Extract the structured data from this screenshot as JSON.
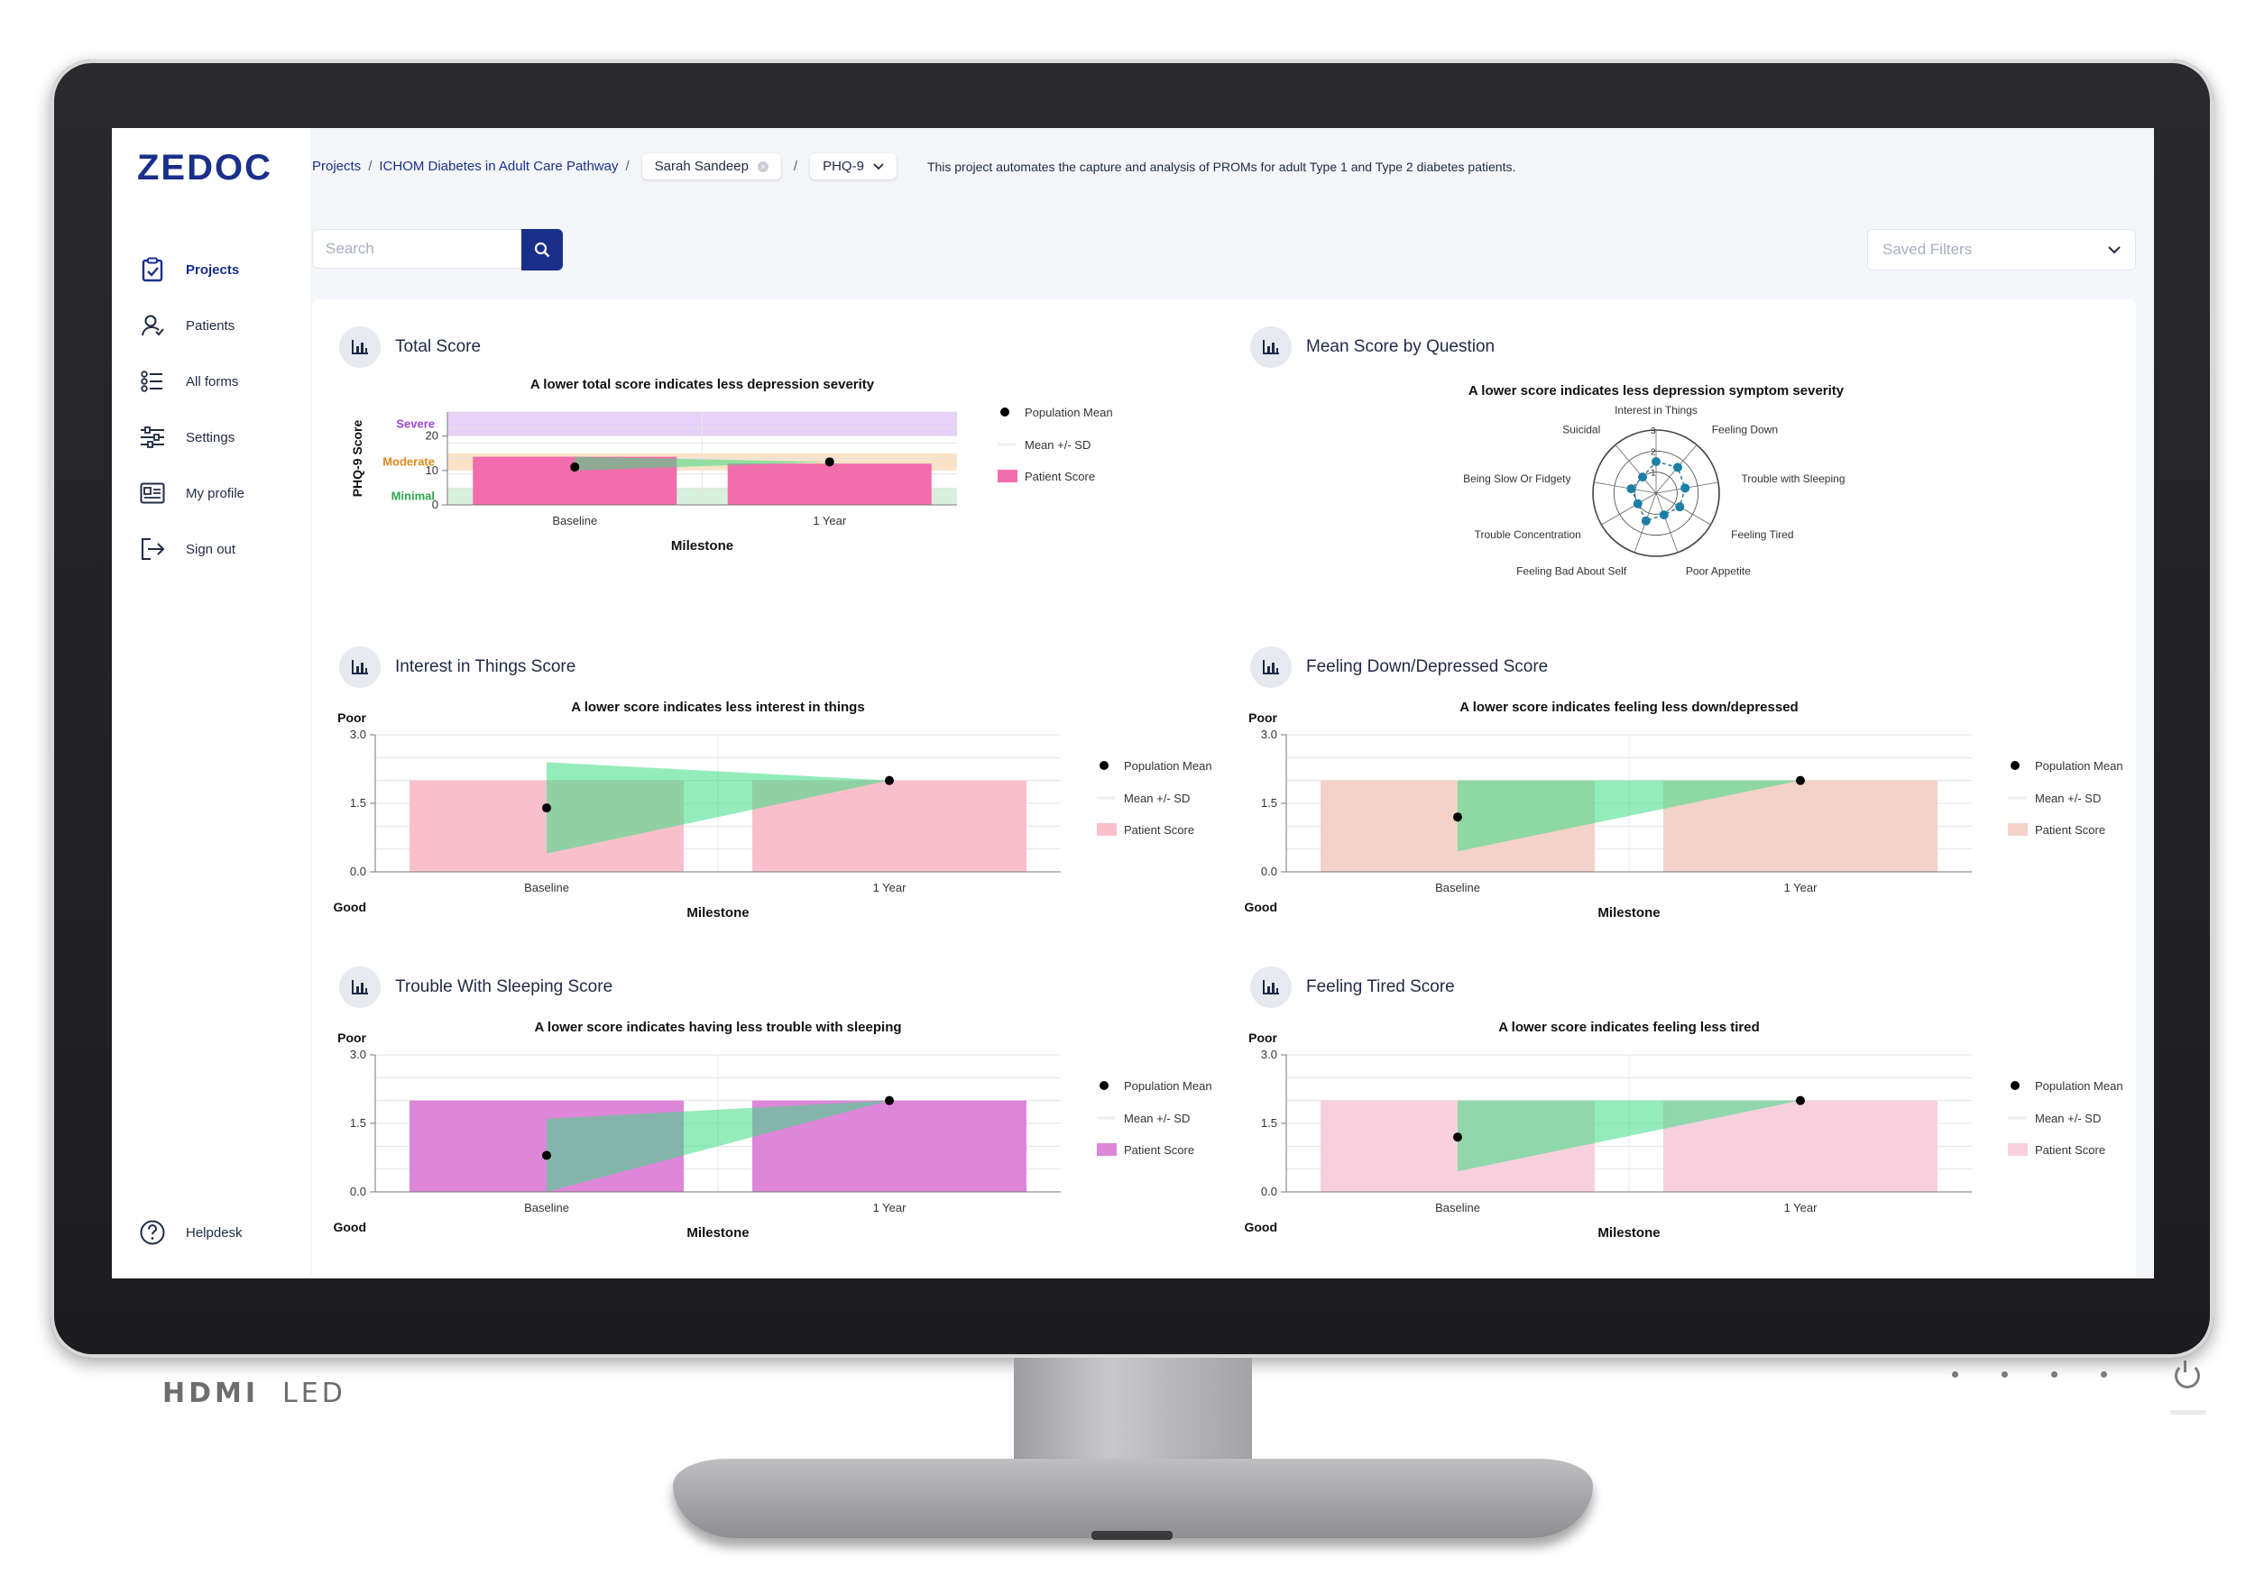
{
  "app": {
    "logo": "ZEDOC"
  },
  "sidebar": {
    "items": [
      {
        "label": "Projects",
        "icon": "clipboard-icon",
        "active": true
      },
      {
        "label": "Patients",
        "icon": "user-icon"
      },
      {
        "label": "All forms",
        "icon": "list-icon"
      },
      {
        "label": "Settings",
        "icon": "sliders-icon"
      },
      {
        "label": "My profile",
        "icon": "id-card-icon"
      },
      {
        "label": "Sign out",
        "icon": "sign-out-icon"
      }
    ],
    "help": "Helpdesk"
  },
  "header": {
    "breadcrumb": [
      "Projects",
      "ICHOM Diabetes in Adult Care Pathway"
    ],
    "separator": "/",
    "patient_chip": "Sarah Sandeep",
    "form_chip": "PHQ-9",
    "description": "This project automates the capture and analysis of PROMs for adult Type 1 and Type 2 diabetes patients.",
    "search_placeholder": "Search",
    "saved_filters": "Saved Filters"
  },
  "bezel": {
    "brand": "HDMI",
    "led": "LED"
  },
  "colors": {
    "accent": "#1a2f8a",
    "mean_sd": "#3ddc84",
    "severe": "#e6d2f7",
    "moderate": "#fbe3c7",
    "minimal": "#d8f1dc"
  },
  "chart_data": [
    {
      "id": "total",
      "card_title": "Total Score",
      "type": "bar",
      "title": "A lower total score indicates less depression severity",
      "xlabel": "Milestone",
      "ylabel": "PHQ-9 Score",
      "categories": [
        "Baseline",
        "1 Year"
      ],
      "ylim": [
        0,
        27
      ],
      "yticks": [
        0,
        10,
        20
      ],
      "bands": [
        {
          "label": "Severe",
          "from": 20,
          "to": 27,
          "color": "#e6d2f7",
          "text_color": "#9b49d9"
        },
        {
          "label": "Moderate",
          "from": 10,
          "to": 15,
          "color": "#fbe3c7",
          "text_color": "#e08a1e"
        },
        {
          "label": "Minimal",
          "from": 0,
          "to": 5,
          "color": "#d8f1dc",
          "text_color": "#2da44e"
        }
      ],
      "series": [
        {
          "name": "Patient Score",
          "values": [
            14,
            12
          ],
          "color": "#f26dab"
        },
        {
          "name": "Population Mean",
          "values": [
            11,
            12.5
          ]
        },
        {
          "name": "Mean +/- SD",
          "lower": [
            10,
            12.5
          ],
          "upper": [
            14,
            12.5
          ]
        }
      ]
    },
    {
      "id": "radar",
      "card_title": "Mean Score by Question",
      "type": "radar",
      "title": "A lower score indicates less depression symptom severity",
      "axes": [
        "Interest in Things",
        "Feeling Down",
        "Trouble with Sleeping",
        "Feeling Tired",
        "Poor Appetite",
        "Feeling Bad About Self",
        "Trouble Concentration",
        "Being Slow Or Fidgety",
        "Suicidal"
      ],
      "rlim": [
        0,
        3
      ],
      "rticks": [
        0,
        1,
        2,
        3
      ],
      "values": [
        1.5,
        1.6,
        1.4,
        1.3,
        1.1,
        1.4,
        1.0,
        1.2,
        1.0
      ]
    },
    {
      "id": "interest",
      "card_title": "Interest in Things Score",
      "type": "bar",
      "title": "A lower score indicates less interest in things",
      "xlabel": "Milestone",
      "top_label": "Poor",
      "bottom_label": "Good",
      "categories": [
        "Baseline",
        "1 Year"
      ],
      "ylim": [
        0,
        3
      ],
      "yticks": [
        0,
        1.5,
        3
      ],
      "series": [
        {
          "name": "Patient Score",
          "values": [
            2,
            2
          ],
          "color": "#f9c0cb"
        },
        {
          "name": "Population Mean",
          "values": [
            1.4,
            2
          ]
        },
        {
          "name": "Mean +/- SD",
          "lower": [
            0.4,
            2
          ],
          "upper": [
            2.4,
            2
          ]
        }
      ]
    },
    {
      "id": "down",
      "card_title": "Feeling Down/Depressed Score",
      "type": "bar",
      "title": "A lower score indicates feeling less down/depressed",
      "xlabel": "Milestone",
      "top_label": "Poor",
      "bottom_label": "Good",
      "categories": [
        "Baseline",
        "1 Year"
      ],
      "ylim": [
        0,
        3
      ],
      "yticks": [
        0,
        1.5,
        3
      ],
      "series": [
        {
          "name": "Patient Score",
          "values": [
            2,
            2
          ],
          "color": "#f2d2c9"
        },
        {
          "name": "Population Mean",
          "values": [
            1.2,
            2
          ]
        },
        {
          "name": "Mean +/- SD",
          "lower": [
            0.45,
            2
          ],
          "upper": [
            2,
            2
          ]
        }
      ]
    },
    {
      "id": "sleep",
      "card_title": "Trouble With Sleeping Score",
      "type": "bar",
      "title": "A lower score indicates having less trouble with sleeping",
      "xlabel": "Milestone",
      "top_label": "Poor",
      "bottom_label": "Good",
      "categories": [
        "Baseline",
        "1 Year"
      ],
      "ylim": [
        0,
        3
      ],
      "yticks": [
        0,
        1.5,
        3
      ],
      "series": [
        {
          "name": "Patient Score",
          "values": [
            2,
            2
          ],
          "color": "#de86d9"
        },
        {
          "name": "Population Mean",
          "values": [
            0.8,
            2
          ]
        },
        {
          "name": "Mean +/- SD",
          "lower": [
            0,
            2
          ],
          "upper": [
            1.6,
            2
          ]
        }
      ]
    },
    {
      "id": "tired",
      "card_title": "Feeling Tired Score",
      "type": "bar",
      "title": "A lower score indicates feeling less tired",
      "xlabel": "Milestone",
      "top_label": "Poor",
      "bottom_label": "Good",
      "categories": [
        "Baseline",
        "1 Year"
      ],
      "ylim": [
        0,
        3
      ],
      "yticks": [
        0,
        1.5,
        3
      ],
      "series": [
        {
          "name": "Patient Score",
          "values": [
            2,
            2
          ],
          "color": "#f8d0dd"
        },
        {
          "name": "Population Mean",
          "values": [
            1.2,
            2
          ]
        },
        {
          "name": "Mean +/- SD",
          "lower": [
            0.45,
            2
          ],
          "upper": [
            2,
            2
          ]
        }
      ]
    }
  ]
}
